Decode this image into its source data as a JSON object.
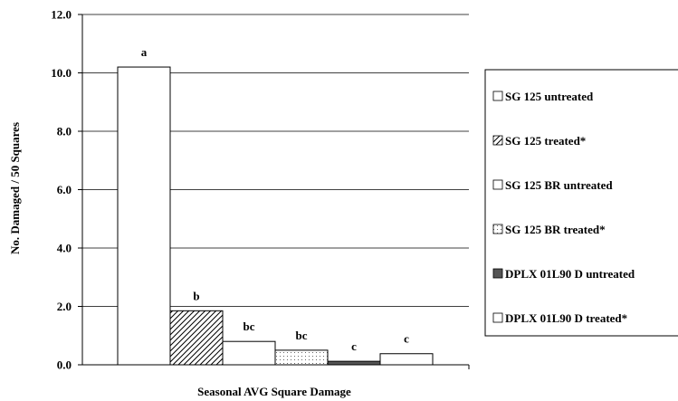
{
  "chart_data": {
    "type": "bar",
    "title": "",
    "xlabel": "Seasonal AVG Square Damage",
    "ylabel": "No. Damaged / 50 Squares",
    "ylim": [
      0,
      12
    ],
    "y_ticks": [
      "0.0",
      "2.0",
      "4.0",
      "6.0",
      "8.0",
      "10.0",
      "12.0"
    ],
    "grid": "horizontal",
    "legend_position": "right",
    "series": [
      {
        "name": "SG 125 untreated",
        "value": 10.2,
        "label": "a",
        "pattern": "solid",
        "fill": "#ffffff"
      },
      {
        "name": "SG 125 treated*",
        "value": 1.85,
        "label": "b",
        "pattern": "diagonal-hatch",
        "fill": "#ffffff"
      },
      {
        "name": "SG 125 BR untreated",
        "value": 0.8,
        "label": "bc",
        "pattern": "solid",
        "fill": "#ffffff"
      },
      {
        "name": "SG 125 BR treated*",
        "value": 0.5,
        "label": "bc",
        "pattern": "dots",
        "fill": "#ffffff"
      },
      {
        "name": "DPLX 01L90 D untreated",
        "value": 0.12,
        "label": "c",
        "pattern": "solid",
        "fill": "#555555"
      },
      {
        "name": "DPLX 01L90 D treated*",
        "value": 0.38,
        "label": "c",
        "pattern": "solid",
        "fill": "#ffffff"
      }
    ]
  }
}
